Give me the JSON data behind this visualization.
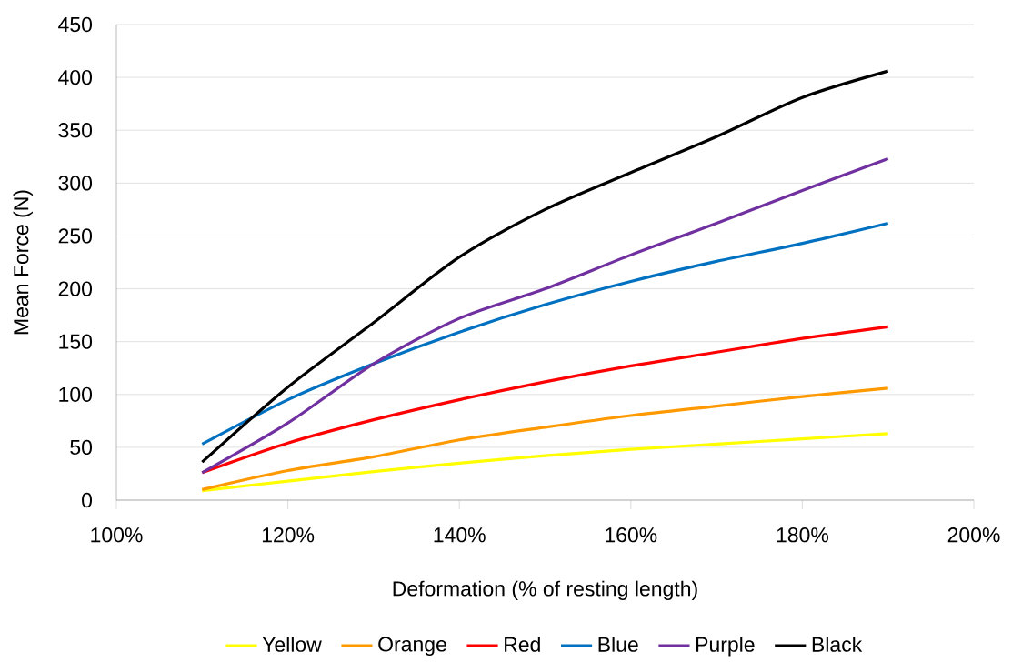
{
  "chart_data": {
    "type": "line",
    "xlabel": "Deformation (% of resting length)",
    "ylabel": "Mean Force (N)",
    "x": [
      110,
      120,
      130,
      140,
      150,
      160,
      170,
      180,
      190
    ],
    "series": [
      {
        "name": "Yellow",
        "color": "#ffff00",
        "values": [
          9,
          18,
          27,
          35,
          42,
          48,
          53,
          58,
          63
        ]
      },
      {
        "name": "Orange",
        "color": "#ff9900",
        "values": [
          10,
          28,
          41,
          57,
          69,
          80,
          89,
          98,
          106
        ]
      },
      {
        "name": "Red",
        "color": "#ff0000",
        "values": [
          26,
          54,
          76,
          95,
          112,
          127,
          140,
          153,
          164
        ]
      },
      {
        "name": "Blue",
        "color": "#0070c0",
        "values": [
          53,
          95,
          129,
          159,
          185,
          207,
          226,
          243,
          262
        ]
      },
      {
        "name": "Purple",
        "color": "#7030a0",
        "values": [
          26,
          73,
          129,
          172,
          200,
          232,
          262,
          293,
          323
        ]
      },
      {
        "name": "Black",
        "color": "#000000",
        "values": [
          36,
          107,
          168,
          230,
          275,
          310,
          344,
          381,
          406
        ]
      }
    ],
    "xlim": [
      100,
      200
    ],
    "xticks": [
      {
        "value": 100,
        "label": "100%"
      },
      {
        "value": 120,
        "label": "120%"
      },
      {
        "value": 140,
        "label": "140%"
      },
      {
        "value": 160,
        "label": "160%"
      },
      {
        "value": 180,
        "label": "180%"
      },
      {
        "value": 200,
        "label": "200%"
      }
    ],
    "ylim": [
      0,
      450
    ],
    "yticks": [
      0,
      50,
      100,
      150,
      200,
      250,
      300,
      350,
      400,
      450
    ],
    "grid": "y",
    "legend": "bottom",
    "marker": "none",
    "line_style": "solid"
  }
}
